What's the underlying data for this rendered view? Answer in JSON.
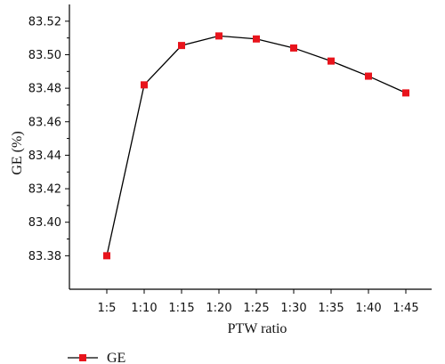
{
  "chart_data": {
    "type": "line",
    "title": "",
    "xlabel": "PTW ratio",
    "ylabel": "GE (%)",
    "categories": [
      "1:5",
      "1:10",
      "1:15",
      "1:20",
      "1:25",
      "1:30",
      "1:35",
      "1:40",
      "1:45"
    ],
    "series": [
      {
        "name": "GE",
        "color": "#e8141c",
        "values": [
          83.38,
          83.482,
          83.5055,
          83.5112,
          83.5094,
          83.504,
          83.4962,
          83.4872,
          83.4772
        ]
      }
    ],
    "ylim": [
      83.36,
      83.53
    ],
    "yticks": [
      "83.38",
      "83.40",
      "83.42",
      "83.44",
      "83.46",
      "83.48",
      "83.50",
      "83.52"
    ],
    "ytick_values": [
      83.38,
      83.4,
      83.42,
      83.44,
      83.46,
      83.48,
      83.5,
      83.52
    ],
    "grid": false,
    "legend_position": "bottom-left",
    "line_color": "#000000"
  }
}
